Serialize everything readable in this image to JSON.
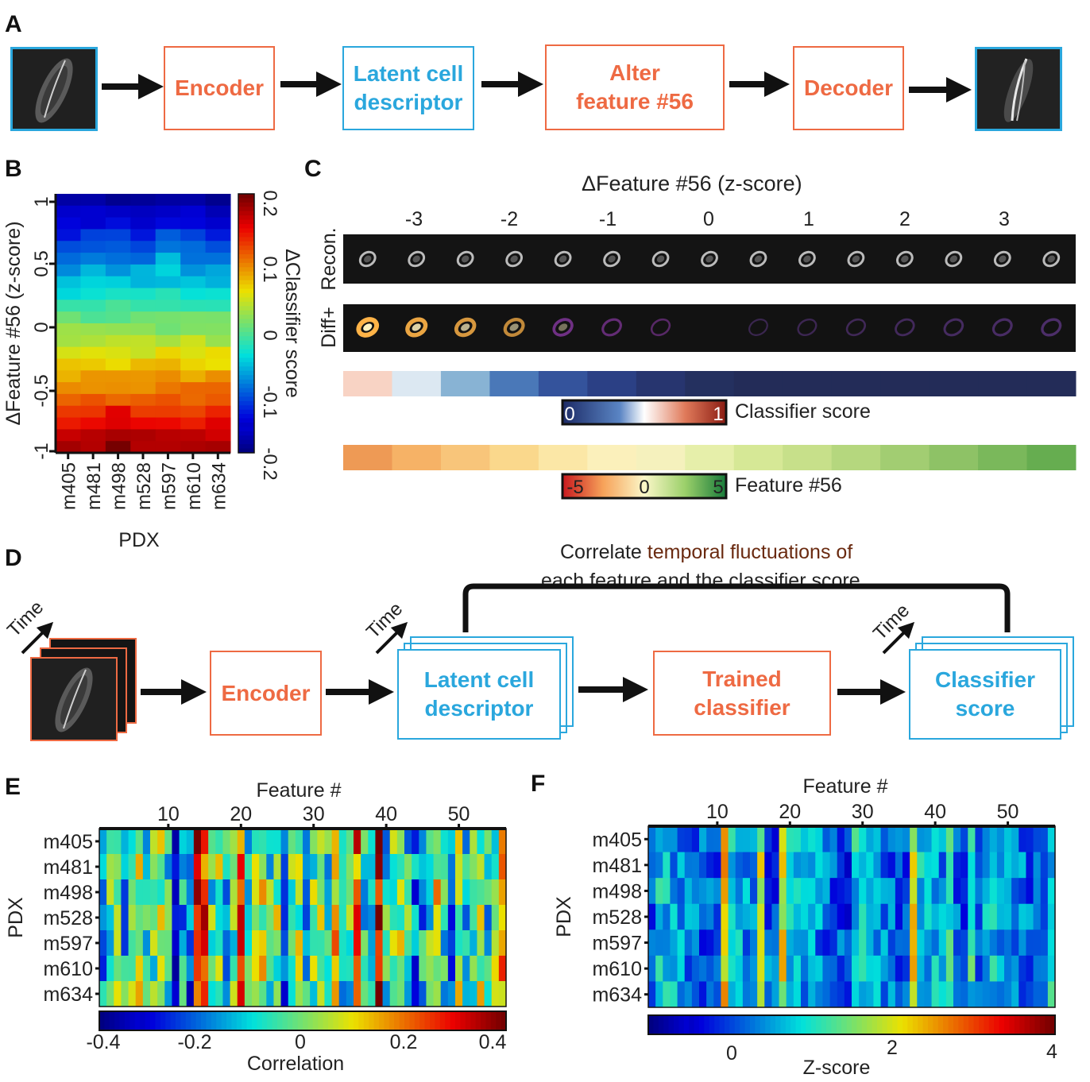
{
  "panels": {
    "A": "A",
    "B": "B",
    "C": "C",
    "D": "D",
    "E": "E",
    "F": "F"
  },
  "panel_a": {
    "encoder": "Encoder",
    "latent_line1": "Latent cell",
    "latent_line2": "descriptor",
    "alter_line1": "Alter",
    "alter_line2": "feature #56",
    "decoder": "Decoder"
  },
  "panel_b": {
    "ylabel": "ΔFeature #56 (z-score)",
    "xlabel": "PDX",
    "colorbar_label": "ΔClassifier score",
    "yticks": [
      "1",
      "0.5",
      "0",
      "-0.5",
      "-1"
    ],
    "colorbar_ticks": [
      "0.2",
      "0.1",
      "0",
      "-0.1",
      "-0.2"
    ],
    "pdx": [
      "m405",
      "m481",
      "m498",
      "m528",
      "m597",
      "m610",
      "m634"
    ]
  },
  "panel_c": {
    "title": "ΔFeature #56 (z-score)",
    "xticks": [
      "-3",
      "-2",
      "-1",
      "0",
      "1",
      "2",
      "3"
    ],
    "row1_label": "Recon.",
    "row2_label": "Diff+",
    "classifier_cb_min": "0",
    "classifier_cb_max": "1",
    "classifier_label": "Classifier score",
    "feature_cb_min": "-5",
    "feature_cb_mid": "0",
    "feature_cb_max": "5",
    "feature_label": "Feature #56"
  },
  "panel_d": {
    "caption_line1_a": "Correlate ",
    "caption_line1_b": "temporal fluctuations of",
    "caption_line2": "each feature and the classifier score",
    "time": "Time",
    "encoder": "Encoder",
    "latent_line1": "Latent cell",
    "latent_line2": "descriptor",
    "trained_line1": "Trained",
    "trained_line2": "classifier",
    "score_line1": "Classifier",
    "score_line2": "score"
  },
  "panel_e": {
    "title": "Feature #",
    "ylabel": "PDX",
    "xticks": [
      "10",
      "20",
      "30",
      "40",
      "50"
    ],
    "rows": [
      "m405",
      "m481",
      "m498",
      "m528",
      "m597",
      "m610",
      "m634"
    ],
    "cb_ticks": [
      "-0.4",
      "-0.2",
      "0",
      "0.2",
      "0.4"
    ],
    "cb_label": "Correlation"
  },
  "panel_f": {
    "title": "Feature #",
    "ylabel": "PDX",
    "xticks": [
      "10",
      "20",
      "30",
      "40",
      "50"
    ],
    "rows": [
      "m405",
      "m481",
      "m498",
      "m528",
      "m597",
      "m610",
      "m634"
    ],
    "cb_ticks": [
      "0",
      "2",
      "4"
    ],
    "cb_label": "Z-score"
  },
  "chart_data": [
    {
      "type": "heatmap",
      "panel": "B",
      "x_categories": [
        "m405",
        "m481",
        "m498",
        "m528",
        "m597",
        "m610",
        "m634"
      ],
      "y_range": [
        -1,
        1
      ],
      "xlabel": "PDX",
      "ylabel": "ΔFeature #56 (z-score)",
      "colorbar": {
        "label": "ΔClassifier score",
        "range": [
          -0.2,
          0.2
        ],
        "colormap": "jet"
      },
      "description_values": "values increase from about -0.2 at y=1 to about 0.2 at y=-1 for all PDX"
    },
    {
      "type": "heatmap",
      "panel": "E",
      "x_range": [
        1,
        56
      ],
      "y_categories": [
        "m405",
        "m481",
        "m498",
        "m528",
        "m597",
        "m610",
        "m634"
      ],
      "xlabel": "Feature #",
      "ylabel": "PDX",
      "colorbar": {
        "label": "Correlation",
        "range": [
          -0.4,
          0.4
        ],
        "colormap": "jet"
      }
    },
    {
      "type": "heatmap",
      "panel": "F",
      "x_range": [
        1,
        56
      ],
      "y_categories": [
        "m405",
        "m481",
        "m498",
        "m528",
        "m597",
        "m610",
        "m634"
      ],
      "xlabel": "Feature #",
      "ylabel": "PDX",
      "colorbar": {
        "label": "Z-score",
        "range": [
          -1,
          4
        ],
        "colormap": "jet"
      }
    }
  ]
}
